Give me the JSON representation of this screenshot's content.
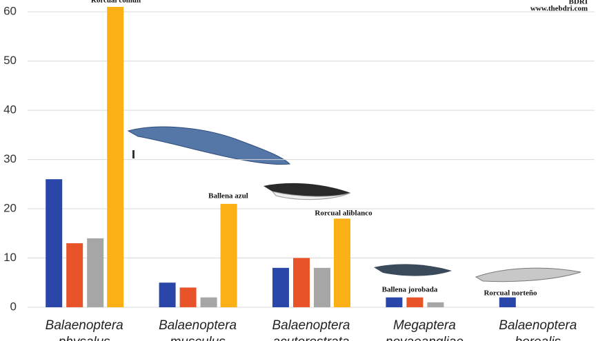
{
  "chart_data": {
    "type": "bar",
    "categories": [
      [
        "Balaenoptera",
        "physalus"
      ],
      [
        "Balaenoptera",
        "musculus"
      ],
      [
        "Balaenoptera",
        "acutorostrata"
      ],
      [
        "Megaptera",
        "novaeangliae"
      ],
      [
        "Balaenoptera",
        "borealis"
      ]
    ],
    "series": [
      {
        "color": "#2a46a8",
        "values": [
          26,
          5,
          8,
          2,
          2
        ]
      },
      {
        "color": "#e8532a",
        "values": [
          13,
          4,
          10,
          2,
          null
        ]
      },
      {
        "color": "#a6a6a6",
        "values": [
          14,
          2,
          8,
          1,
          null
        ]
      },
      {
        "color": "#fbb116",
        "values": [
          61,
          21,
          18,
          null,
          null
        ]
      }
    ],
    "ylim": [
      0,
      62.4
    ],
    "yticks": [
      0,
      10,
      20,
      30,
      40,
      50,
      60
    ],
    "grid": true,
    "annotations": [
      "Rorcual común",
      "Ballena azul",
      "Rorcual aliblanco",
      "Ballena jorobada",
      "Rorcual norteño",
      "BDRI",
      "www.thebdri.com"
    ]
  }
}
